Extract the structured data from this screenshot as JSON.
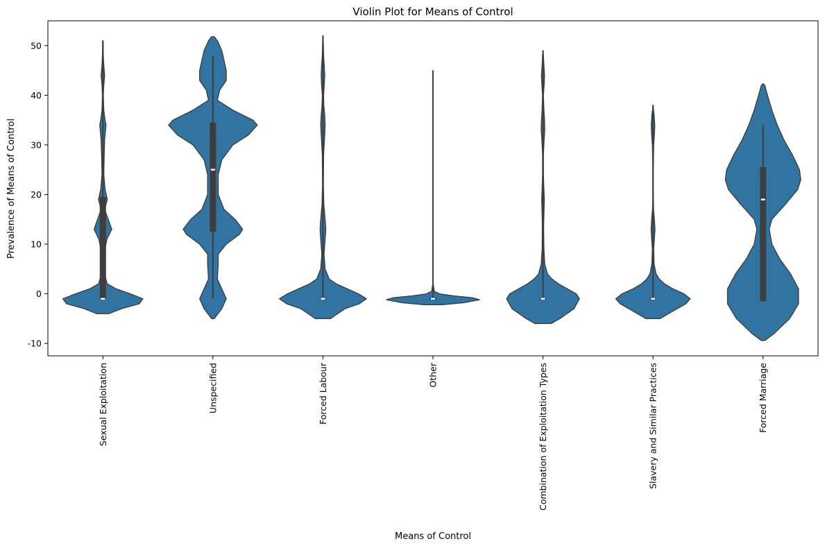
{
  "chart_data": {
    "type": "violin",
    "title": "Violin Plot for Means of Control",
    "xlabel": "Means of Control",
    "ylabel": "Prevalence of Means of Control",
    "ylim": [
      -12.5,
      55
    ],
    "yticks": [
      -10,
      0,
      10,
      20,
      30,
      40,
      50
    ],
    "grid": false,
    "categories": [
      "Sexual Exploitation",
      "Unspecified",
      "Forced Labour",
      "Other",
      "Combination of Exploitation Types",
      "Slavery and Similar Practices",
      "Forced Marriage"
    ],
    "colors": {
      "violin": "#3274a1",
      "edge": "#3a3a3a",
      "box": "#3d3d3d",
      "median": "#ffffff"
    },
    "violins": [
      {
        "name": "Sexual Exploitation",
        "min": -1,
        "q1": -1,
        "median": -1,
        "q3": 19.5,
        "max": 51,
        "profile": [
          [
            -4,
            0.14
          ],
          [
            -3,
            0.42
          ],
          [
            -2,
            0.82
          ],
          [
            -1,
            0.9
          ],
          [
            0,
            0.62
          ],
          [
            1,
            0.3
          ],
          [
            2,
            0.1
          ],
          [
            4,
            0.03
          ],
          [
            8,
            0.03
          ],
          [
            11,
            0.09
          ],
          [
            13,
            0.2
          ],
          [
            15,
            0.12
          ],
          [
            17,
            0.04
          ],
          [
            19,
            0.1
          ],
          [
            21,
            0.05
          ],
          [
            24,
            0.02
          ],
          [
            28,
            0.03
          ],
          [
            31,
            0.04
          ],
          [
            33,
            0.06
          ],
          [
            34,
            0.07
          ],
          [
            35,
            0.05
          ],
          [
            37,
            0.02
          ],
          [
            40,
            0.01
          ],
          [
            42,
            0.02
          ],
          [
            44,
            0.04
          ],
          [
            46,
            0.02
          ],
          [
            48,
            0.01
          ],
          [
            51,
            0.005
          ]
        ]
      },
      {
        "name": "Unspecified",
        "min": -1,
        "q1": 12.5,
        "median": 25,
        "q3": 34.5,
        "max": 48,
        "profile": [
          [
            -5,
            0.03
          ],
          [
            -3,
            0.2
          ],
          [
            -1,
            0.3
          ],
          [
            1,
            0.2
          ],
          [
            3,
            0.1
          ],
          [
            6,
            0.12
          ],
          [
            8,
            0.12
          ],
          [
            10,
            0.3
          ],
          [
            12,
            0.6
          ],
          [
            13,
            0.67
          ],
          [
            15,
            0.5
          ],
          [
            17,
            0.25
          ],
          [
            20,
            0.12
          ],
          [
            24,
            0.12
          ],
          [
            27,
            0.2
          ],
          [
            30,
            0.45
          ],
          [
            32,
            0.8
          ],
          [
            34,
            1.0
          ],
          [
            35,
            0.9
          ],
          [
            37,
            0.45
          ],
          [
            39,
            0.1
          ],
          [
            41,
            0.15
          ],
          [
            43,
            0.3
          ],
          [
            45,
            0.3
          ],
          [
            47,
            0.25
          ],
          [
            49,
            0.2
          ],
          [
            51,
            0.1
          ],
          [
            51.8,
            0.03
          ]
        ]
      },
      {
        "name": "Forced Labour",
        "min": -1,
        "q1": -1,
        "median": -1,
        "q3": -1,
        "max": 52,
        "profile": [
          [
            -5,
            0.17
          ],
          [
            -3,
            0.5
          ],
          [
            -2,
            0.82
          ],
          [
            -1,
            0.98
          ],
          [
            0,
            0.8
          ],
          [
            1,
            0.55
          ],
          [
            2,
            0.3
          ],
          [
            3,
            0.14
          ],
          [
            5,
            0.05
          ],
          [
            8,
            0.025
          ],
          [
            11,
            0.05
          ],
          [
            13,
            0.065
          ],
          [
            15,
            0.05
          ],
          [
            18,
            0.02
          ],
          [
            22,
            0.01
          ],
          [
            28,
            0.015
          ],
          [
            32,
            0.04
          ],
          [
            34,
            0.05
          ],
          [
            36,
            0.04
          ],
          [
            38,
            0.02
          ],
          [
            40,
            0.015
          ],
          [
            42,
            0.03
          ],
          [
            44,
            0.04
          ],
          [
            46,
            0.03
          ],
          [
            48,
            0.015
          ],
          [
            50,
            0.01
          ],
          [
            52,
            0.003
          ]
        ]
      },
      {
        "name": "Other",
        "min": -1,
        "q1": -1,
        "median": -1,
        "q3": -1,
        "max": 45,
        "profile": [
          [
            -2.2,
            0.2
          ],
          [
            -1.8,
            0.7
          ],
          [
            -1.2,
            1.05
          ],
          [
            -0.8,
            0.9
          ],
          [
            -0.4,
            0.45
          ],
          [
            0,
            0.15
          ],
          [
            0.5,
            0.03
          ],
          [
            2,
            0.005
          ],
          [
            5,
            0.003
          ],
          [
            12,
            0.004
          ],
          [
            14,
            0.003
          ],
          [
            20,
            0.002
          ],
          [
            30,
            0.003
          ],
          [
            34,
            0.004
          ],
          [
            36,
            0.002
          ],
          [
            40,
            0.002
          ],
          [
            45,
            0.002
          ]
        ]
      },
      {
        "name": "Combination of Exploitation Types",
        "min": -1,
        "q1": -1,
        "median": -1,
        "q3": -1,
        "max": 49,
        "profile": [
          [
            -6,
            0.18
          ],
          [
            -5,
            0.38
          ],
          [
            -3,
            0.7
          ],
          [
            -1,
            0.82
          ],
          [
            0,
            0.75
          ],
          [
            1,
            0.55
          ],
          [
            2,
            0.35
          ],
          [
            3,
            0.2
          ],
          [
            4,
            0.1
          ],
          [
            6,
            0.04
          ],
          [
            9,
            0.02
          ],
          [
            13,
            0.015
          ],
          [
            16,
            0.02
          ],
          [
            19,
            0.03
          ],
          [
            21,
            0.02
          ],
          [
            24,
            0.01
          ],
          [
            28,
            0.01
          ],
          [
            31,
            0.025
          ],
          [
            33,
            0.04
          ],
          [
            35,
            0.035
          ],
          [
            37,
            0.02
          ],
          [
            40,
            0.01
          ],
          [
            42,
            0.025
          ],
          [
            44,
            0.035
          ],
          [
            46,
            0.02
          ],
          [
            48,
            0.01
          ],
          [
            49,
            0.003
          ]
        ]
      },
      {
        "name": "Slavery and Similar Practices",
        "min": -1,
        "q1": -1,
        "median": -1,
        "q3": -1,
        "max": 38,
        "profile": [
          [
            -5,
            0.16
          ],
          [
            -4,
            0.35
          ],
          [
            -2,
            0.74
          ],
          [
            -1,
            0.84
          ],
          [
            0,
            0.7
          ],
          [
            1,
            0.45
          ],
          [
            2,
            0.26
          ],
          [
            3,
            0.14
          ],
          [
            4,
            0.07
          ],
          [
            6,
            0.025
          ],
          [
            9,
            0.015
          ],
          [
            11,
            0.03
          ],
          [
            13,
            0.045
          ],
          [
            15,
            0.03
          ],
          [
            17,
            0.012
          ],
          [
            20,
            0.005
          ],
          [
            25,
            0.005
          ],
          [
            30,
            0.015
          ],
          [
            32,
            0.03
          ],
          [
            34,
            0.04
          ],
          [
            36,
            0.025
          ],
          [
            37,
            0.012
          ],
          [
            38,
            0.003
          ]
        ]
      },
      {
        "name": "Forced Marriage",
        "min": -1.5,
        "q1": -1.5,
        "median": 19,
        "q3": 25.5,
        "max": 34,
        "profile": [
          [
            -9.4,
            0.04
          ],
          [
            -8,
            0.25
          ],
          [
            -5,
            0.6
          ],
          [
            -2,
            0.8
          ],
          [
            1,
            0.8
          ],
          [
            4,
            0.62
          ],
          [
            7,
            0.38
          ],
          [
            10,
            0.2
          ],
          [
            13,
            0.14
          ],
          [
            15,
            0.2
          ],
          [
            18,
            0.5
          ],
          [
            21,
            0.78
          ],
          [
            23,
            0.85
          ],
          [
            25,
            0.82
          ],
          [
            28,
            0.66
          ],
          [
            31,
            0.47
          ],
          [
            34,
            0.32
          ],
          [
            37,
            0.2
          ],
          [
            40,
            0.1
          ],
          [
            42,
            0.04
          ],
          [
            42.3,
            0.01
          ]
        ]
      }
    ]
  }
}
